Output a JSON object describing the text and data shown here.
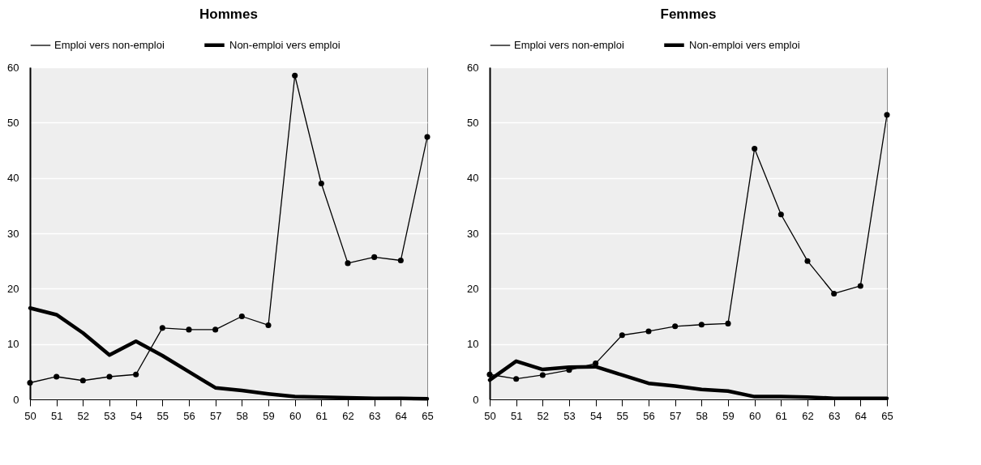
{
  "chart_data": [
    {
      "type": "line",
      "title": "Hommes",
      "x": [
        50,
        51,
        52,
        53,
        54,
        55,
        56,
        57,
        58,
        59,
        60,
        61,
        62,
        63,
        64,
        65
      ],
      "xlim": [
        50,
        65
      ],
      "xticks": [
        50,
        51,
        52,
        53,
        54,
        55,
        56,
        57,
        58,
        59,
        60,
        61,
        62,
        63,
        64,
        65
      ],
      "ylim": [
        0,
        60
      ],
      "yticks": [
        0,
        10,
        20,
        30,
        40,
        50,
        60
      ],
      "grid": "y",
      "legend": "top",
      "marker": "circle",
      "series": [
        {
          "name": "Emploi vers non-emploi",
          "color": "#000000",
          "values": [
            3,
            4.1,
            3.4,
            4.1,
            4.5,
            12.9,
            12.6,
            12.6,
            15,
            13.4,
            58.5,
            39,
            24.6,
            25.7,
            25.1,
            47.4
          ]
        },
        {
          "name": "Non-emploi vers emploi",
          "color": "#000000",
          "marker": "none",
          "values": [
            16.5,
            15.3,
            12,
            8,
            10.5,
            7.9,
            5,
            2.1,
            1.6,
            1,
            0.5,
            0.4,
            0.3,
            0.2,
            0.2,
            0.1
          ]
        }
      ]
    },
    {
      "type": "line",
      "title": "Femmes",
      "x": [
        50,
        51,
        52,
        53,
        54,
        55,
        56,
        57,
        58,
        59,
        60,
        61,
        62,
        63,
        64,
        65
      ],
      "xlim": [
        50,
        65
      ],
      "xticks": [
        50,
        51,
        52,
        53,
        54,
        55,
        56,
        57,
        58,
        59,
        60,
        61,
        62,
        63,
        64,
        65
      ],
      "ylim": [
        0,
        60
      ],
      "yticks": [
        0,
        10,
        20,
        30,
        40,
        50,
        60
      ],
      "grid": "y",
      "legend": "top",
      "marker": "circle",
      "series": [
        {
          "name": "Emploi vers non-emploi",
          "color": "#000000",
          "values": [
            4.5,
            3.7,
            4.4,
            5.3,
            6.5,
            11.6,
            12.3,
            13.2,
            13.5,
            13.7,
            45.3,
            33.4,
            25,
            19.1,
            20.5,
            51.4
          ]
        },
        {
          "name": "Non-emploi vers emploi",
          "color": "#000000",
          "marker": "none",
          "values": [
            3.5,
            6.9,
            5.4,
            5.8,
            5.9,
            4.4,
            2.9,
            2.4,
            1.8,
            1.5,
            0.5,
            0.5,
            0.4,
            0.2,
            0.2,
            0.2
          ]
        }
      ]
    }
  ]
}
